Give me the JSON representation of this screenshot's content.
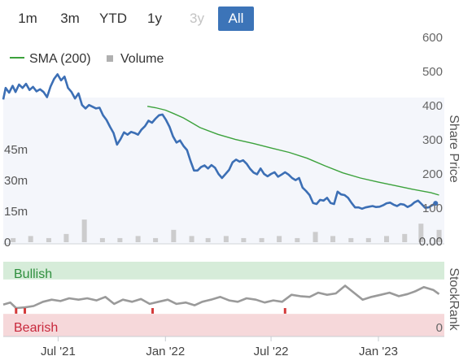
{
  "range_selector": {
    "buttons": [
      {
        "label": "1m",
        "state": "normal"
      },
      {
        "label": "3m",
        "state": "normal"
      },
      {
        "label": "YTD",
        "state": "normal"
      },
      {
        "label": "1y",
        "state": "normal"
      },
      {
        "label": "3y",
        "state": "disabled"
      },
      {
        "label": "All",
        "state": "active"
      }
    ]
  },
  "colors": {
    "price_line": "#3c6fb5",
    "sma_line": "#3ca23c",
    "volume_bar": "#c4c4c4",
    "stockrank_line": "#9a9a9a",
    "bullish_band": "#d6ecd9",
    "bearish_band": "#f6d8da",
    "active_button": "#3c74b8",
    "plot_background": "#f4f6fb"
  },
  "chart_data": [
    {
      "type": "line",
      "title": "",
      "legend": {
        "placement": "top-left",
        "entries": [
          {
            "label": "SMA (200)",
            "symbol": "line",
            "color": "#3ca23c"
          },
          {
            "label": "Volume",
            "symbol": "square",
            "color": "#b0b0b0"
          }
        ]
      },
      "x_ticks": [
        "Jul '21",
        "Jan '22",
        "Jul '22",
        "Jan '23"
      ],
      "x_tick_values": [
        "2021-07-01",
        "2022-01-01",
        "2022-07-01",
        "2023-01-01"
      ],
      "xlim": [
        "2021-03-29",
        "2023-04-24"
      ],
      "ylabel": "Share Price",
      "y_ticks": [
        "600",
        "500",
        "400",
        "300",
        "200",
        "100"
      ],
      "ylim": [
        80,
        600
      ],
      "grid": false,
      "series": [
        {
          "name": "",
          "role": "price",
          "color": "#3c6fb5",
          "points": [
            [
              "2021-03-29",
              418
            ],
            [
              "2021-04-02",
              452
            ],
            [
              "2021-04-08",
              438
            ],
            [
              "2021-04-14",
              458
            ],
            [
              "2021-04-19",
              440
            ],
            [
              "2021-04-25",
              462
            ],
            [
              "2021-05-01",
              452
            ],
            [
              "2021-05-07",
              464
            ],
            [
              "2021-05-13",
              446
            ],
            [
              "2021-05-19",
              455
            ],
            [
              "2021-05-25",
              442
            ],
            [
              "2021-05-31",
              448
            ],
            [
              "2021-06-06",
              440
            ],
            [
              "2021-06-12",
              425
            ],
            [
              "2021-06-18",
              456
            ],
            [
              "2021-06-24",
              478
            ],
            [
              "2021-06-30",
              492
            ],
            [
              "2021-07-06",
              474
            ],
            [
              "2021-07-12",
              485
            ],
            [
              "2021-07-18",
              452
            ],
            [
              "2021-07-24",
              440
            ],
            [
              "2021-07-30",
              421
            ],
            [
              "2021-08-05",
              436
            ],
            [
              "2021-08-11",
              402
            ],
            [
              "2021-08-17",
              392
            ],
            [
              "2021-08-23",
              402
            ],
            [
              "2021-08-29",
              397
            ],
            [
              "2021-09-04",
              392
            ],
            [
              "2021-09-10",
              394
            ],
            [
              "2021-09-16",
              372
            ],
            [
              "2021-09-22",
              358
            ],
            [
              "2021-09-28",
              338
            ],
            [
              "2021-10-04",
              320
            ],
            [
              "2021-10-10",
              286
            ],
            [
              "2021-10-16",
              302
            ],
            [
              "2021-10-22",
              322
            ],
            [
              "2021-10-28",
              315
            ],
            [
              "2021-11-03",
              323
            ],
            [
              "2021-11-09",
              320
            ],
            [
              "2021-11-15",
              315
            ],
            [
              "2021-11-21",
              330
            ],
            [
              "2021-11-27",
              340
            ],
            [
              "2021-12-03",
              356
            ],
            [
              "2021-12-09",
              350
            ],
            [
              "2021-12-15",
              362
            ],
            [
              "2021-12-21",
              372
            ],
            [
              "2021-12-27",
              374
            ],
            [
              "2022-01-02",
              358
            ],
            [
              "2022-01-08",
              338
            ],
            [
              "2022-01-14",
              310
            ],
            [
              "2022-01-20",
              292
            ],
            [
              "2022-01-26",
              298
            ],
            [
              "2022-02-01",
              282
            ],
            [
              "2022-02-07",
              270
            ],
            [
              "2022-02-13",
              238
            ],
            [
              "2022-02-19",
              210
            ],
            [
              "2022-02-25",
              210
            ],
            [
              "2022-03-03",
              220
            ],
            [
              "2022-03-09",
              225
            ],
            [
              "2022-03-15",
              216
            ],
            [
              "2022-03-21",
              226
            ],
            [
              "2022-03-27",
              218
            ],
            [
              "2022-04-02",
              200
            ],
            [
              "2022-04-08",
              188
            ],
            [
              "2022-04-14",
              200
            ],
            [
              "2022-04-20",
              212
            ],
            [
              "2022-04-26",
              234
            ],
            [
              "2022-05-02",
              242
            ],
            [
              "2022-05-08",
              236
            ],
            [
              "2022-05-14",
              240
            ],
            [
              "2022-05-20",
              230
            ],
            [
              "2022-05-26",
              215
            ],
            [
              "2022-06-01",
              204
            ],
            [
              "2022-06-07",
              199
            ],
            [
              "2022-06-13",
              216
            ],
            [
              "2022-06-19",
              200
            ],
            [
              "2022-06-25",
              193
            ],
            [
              "2022-07-01",
              200
            ],
            [
              "2022-07-07",
              205
            ],
            [
              "2022-07-13",
              192
            ],
            [
              "2022-07-19",
              198
            ],
            [
              "2022-07-25",
              205
            ],
            [
              "2022-07-31",
              198
            ],
            [
              "2022-08-06",
              188
            ],
            [
              "2022-08-12",
              182
            ],
            [
              "2022-08-18",
              188
            ],
            [
              "2022-08-24",
              160
            ],
            [
              "2022-08-30",
              150
            ],
            [
              "2022-09-05",
              138
            ],
            [
              "2022-09-11",
              115
            ],
            [
              "2022-09-17",
              112
            ],
            [
              "2022-09-23",
              124
            ],
            [
              "2022-09-29",
              122
            ],
            [
              "2022-10-05",
              130
            ],
            [
              "2022-10-11",
              115
            ],
            [
              "2022-10-17",
              112
            ],
            [
              "2022-10-23",
              148
            ],
            [
              "2022-10-29",
              140
            ],
            [
              "2022-11-04",
              138
            ],
            [
              "2022-11-10",
              130
            ],
            [
              "2022-11-16",
              115
            ],
            [
              "2022-11-22",
              102
            ],
            [
              "2022-11-28",
              102
            ],
            [
              "2022-12-04",
              98
            ],
            [
              "2022-12-10",
              102
            ],
            [
              "2022-12-16",
              104
            ],
            [
              "2022-12-22",
              106
            ],
            [
              "2022-12-28",
              103
            ],
            [
              "2023-01-03",
              104
            ],
            [
              "2023-01-09",
              108
            ],
            [
              "2023-01-15",
              114
            ],
            [
              "2023-01-21",
              116
            ],
            [
              "2023-01-27",
              110
            ],
            [
              "2023-02-02",
              106
            ],
            [
              "2023-02-08",
              112
            ],
            [
              "2023-02-14",
              110
            ],
            [
              "2023-02-20",
              103
            ],
            [
              "2023-02-26",
              108
            ],
            [
              "2023-03-04",
              117
            ],
            [
              "2023-03-10",
              122
            ],
            [
              "2023-03-16",
              112
            ],
            [
              "2023-03-22",
              101
            ],
            [
              "2023-03-28",
              102
            ],
            [
              "2023-04-03",
              108
            ],
            [
              "2023-04-09",
              114
            ]
          ]
        },
        {
          "name": "SMA (200)",
          "role": "sma",
          "color": "#3ca23c",
          "points": [
            [
              "2021-12-01",
              398
            ],
            [
              "2021-12-15",
              394
            ],
            [
              "2022-01-01",
              387
            ],
            [
              "2022-01-15",
              377
            ],
            [
              "2022-02-01",
              364
            ],
            [
              "2022-02-15",
              350
            ],
            [
              "2022-03-01",
              336
            ],
            [
              "2022-04-01",
              316
            ],
            [
              "2022-05-01",
              301
            ],
            [
              "2022-06-01",
              289
            ],
            [
              "2022-07-01",
              276
            ],
            [
              "2022-08-01",
              263
            ],
            [
              "2022-09-01",
              246
            ],
            [
              "2022-10-01",
              224
            ],
            [
              "2022-11-01",
              203
            ],
            [
              "2022-12-01",
              188
            ],
            [
              "2023-01-01",
              176
            ],
            [
              "2023-02-01",
              165
            ],
            [
              "2023-03-01",
              155
            ],
            [
              "2023-04-01",
              145
            ],
            [
              "2023-04-15",
              138
            ]
          ]
        }
      ]
    },
    {
      "type": "bar",
      "name": "Volume",
      "y_ticks": [
        "45m",
        "30m",
        "15m",
        "0"
      ],
      "ylim": [
        0,
        60
      ],
      "x_unit": "month",
      "x": [
        "2021-04",
        "2021-05",
        "2021-06",
        "2021-07",
        "2021-08",
        "2021-09",
        "2021-10",
        "2021-11",
        "2021-12",
        "2022-01",
        "2022-02",
        "2022-03",
        "2022-04",
        "2022-05",
        "2022-06",
        "2022-07",
        "2022-08",
        "2022-09",
        "2022-10",
        "2022-11",
        "2022-12",
        "2023-01",
        "2023-02",
        "2023-03",
        "2023-04"
      ],
      "values": [
        2,
        3,
        2,
        4,
        11,
        2,
        2,
        3,
        2,
        6,
        3,
        2,
        3,
        2,
        2,
        3,
        2,
        5,
        3,
        2,
        2,
        3,
        4,
        9,
        6
      ],
      "annotation": "0.00"
    },
    {
      "type": "line",
      "name": "StockRank",
      "ylabel": "StockRank",
      "ylim": [
        0,
        100
      ],
      "y_ticks": [
        "0"
      ],
      "bands": [
        {
          "label": "Bullish",
          "from": 70,
          "to": 100
        },
        {
          "label": "Bearish",
          "from": 0,
          "to": 30
        }
      ],
      "points": [
        [
          "2021-03-29",
          41
        ],
        [
          "2021-04-10",
          44
        ],
        [
          "2021-04-20",
          36
        ],
        [
          "2021-05-05",
          37
        ],
        [
          "2021-05-20",
          39
        ],
        [
          "2021-06-05",
          45
        ],
        [
          "2021-06-20",
          48
        ],
        [
          "2021-07-05",
          46
        ],
        [
          "2021-07-20",
          50
        ],
        [
          "2021-08-05",
          48
        ],
        [
          "2021-08-20",
          50
        ],
        [
          "2021-09-05",
          47
        ],
        [
          "2021-09-20",
          52
        ],
        [
          "2021-10-05",
          42
        ],
        [
          "2021-10-20",
          48
        ],
        [
          "2021-11-05",
          45
        ],
        [
          "2021-11-20",
          49
        ],
        [
          "2021-12-05",
          42
        ],
        [
          "2021-12-20",
          45
        ],
        [
          "2022-01-05",
          48
        ],
        [
          "2022-01-20",
          42
        ],
        [
          "2022-02-05",
          44
        ],
        [
          "2022-02-20",
          40
        ],
        [
          "2022-03-05",
          45
        ],
        [
          "2022-03-20",
          48
        ],
        [
          "2022-04-05",
          52
        ],
        [
          "2022-04-20",
          47
        ],
        [
          "2022-05-05",
          45
        ],
        [
          "2022-05-20",
          50
        ],
        [
          "2022-06-05",
          48
        ],
        [
          "2022-06-20",
          44
        ],
        [
          "2022-07-05",
          47
        ],
        [
          "2022-07-20",
          45
        ],
        [
          "2022-08-05",
          55
        ],
        [
          "2022-08-20",
          53
        ],
        [
          "2022-09-05",
          52
        ],
        [
          "2022-09-20",
          58
        ],
        [
          "2022-10-05",
          55
        ],
        [
          "2022-10-20",
          57
        ],
        [
          "2022-11-05",
          68
        ],
        [
          "2022-11-20",
          58
        ],
        [
          "2022-12-05",
          48
        ],
        [
          "2022-12-20",
          52
        ],
        [
          "2023-01-05",
          55
        ],
        [
          "2023-01-20",
          58
        ],
        [
          "2023-02-05",
          53
        ],
        [
          "2023-02-20",
          56
        ],
        [
          "2023-03-05",
          60
        ],
        [
          "2023-03-20",
          66
        ],
        [
          "2023-04-05",
          62
        ],
        [
          "2023-04-15",
          56
        ]
      ],
      "negative_marks": [
        "2021-04-20",
        "2021-05-05",
        "2021-12-10",
        "2022-07-25"
      ]
    }
  ]
}
